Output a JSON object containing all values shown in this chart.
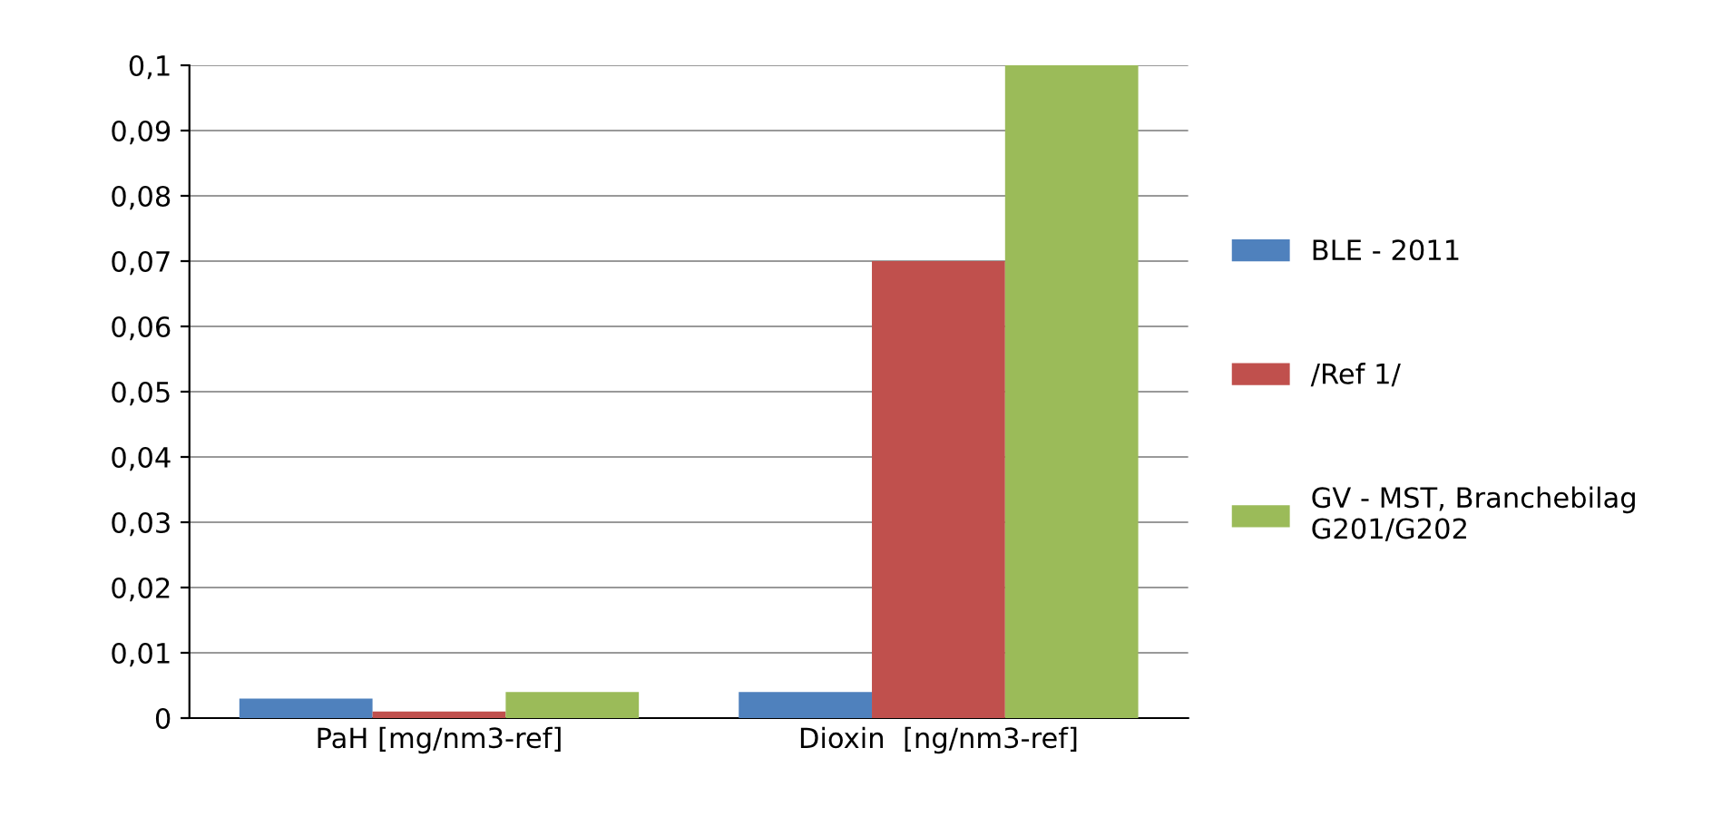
{
  "chart_data": {
    "type": "bar",
    "categories": [
      "PaH [mg/nm3-ref]",
      "Dioxin  [ng/nm3-ref]"
    ],
    "series": [
      {
        "name": "BLE - 2011",
        "color": "#4f81bd",
        "values": [
          0.003,
          0.004
        ]
      },
      {
        "name": "/Ref 1/",
        "color": "#c0504d",
        "values": [
          0.001,
          0.07
        ]
      },
      {
        "name": "GV - MST, Branchebilag\nG201/G202",
        "color": "#9bbb59",
        "values": [
          0.004,
          0.1
        ]
      }
    ],
    "ylim": [
      0,
      0.1
    ],
    "yticks": [
      {
        "value": 0,
        "label": "0"
      },
      {
        "value": 0.01,
        "label": "0,01"
      },
      {
        "value": 0.02,
        "label": "0,02"
      },
      {
        "value": 0.03,
        "label": "0,03"
      },
      {
        "value": 0.04,
        "label": "0,04"
      },
      {
        "value": 0.05,
        "label": "0,05"
      },
      {
        "value": 0.06,
        "label": "0,06"
      },
      {
        "value": 0.07,
        "label": "0,07"
      },
      {
        "value": 0.08,
        "label": "0,08"
      },
      {
        "value": 0.09,
        "label": "0,09"
      },
      {
        "value": 0.1,
        "label": "0,1"
      }
    ],
    "grid": "y",
    "legend": "right"
  }
}
